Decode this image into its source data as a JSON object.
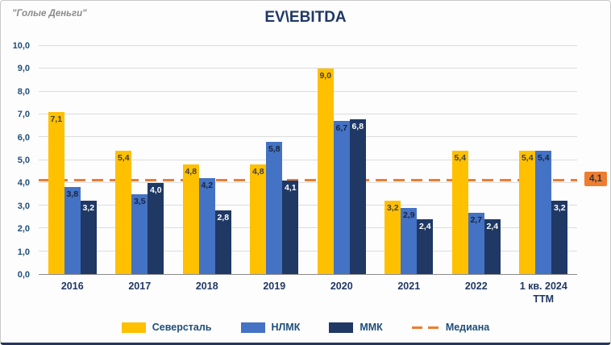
{
  "watermark": "\"Голые Деньги\"",
  "header": {
    "title": "EV\\EBITDA"
  },
  "chart_data": {
    "type": "bar",
    "title": "EV\\EBITDA",
    "categories": [
      "2016",
      "2017",
      "2018",
      "2019",
      "2020",
      "2021",
      "2022",
      "1 кв. 2024 ТТМ"
    ],
    "series": [
      {
        "name": "Северсталь",
        "color": "#FFC000",
        "label_color": "#404040",
        "values": [
          7.1,
          5.4,
          4.8,
          4.8,
          9.0,
          3.2,
          5.4,
          5.4
        ]
      },
      {
        "name": "НЛМК",
        "color": "#4472C4",
        "label_color": "#17253f",
        "values": [
          3.8,
          3.5,
          4.2,
          5.8,
          6.7,
          2.9,
          2.7,
          5.4
        ]
      },
      {
        "name": "ММК",
        "color": "#1F3864",
        "label_color": "#FFFFFF",
        "values": [
          3.2,
          4.0,
          2.8,
          4.1,
          6.8,
          2.4,
          2.4,
          3.2
        ]
      }
    ],
    "median": {
      "name": "Медиана",
      "value": 4.1,
      "label": "4,1",
      "color": "#ED7D31"
    },
    "ylim": [
      0,
      10
    ],
    "ytick_step": 1,
    "ytick_labels": [
      "0,0",
      "1,0",
      "2,0",
      "3,0",
      "4,0",
      "5,0",
      "6,0",
      "7,0",
      "8,0",
      "9,0",
      "10,0"
    ],
    "grid": true,
    "legend_position": "bottom",
    "decimal_separator": ","
  },
  "legend": {
    "items": [
      {
        "label": "Северсталь"
      },
      {
        "label": "НЛМК"
      },
      {
        "label": "ММК"
      },
      {
        "label": "Медиана"
      }
    ]
  }
}
